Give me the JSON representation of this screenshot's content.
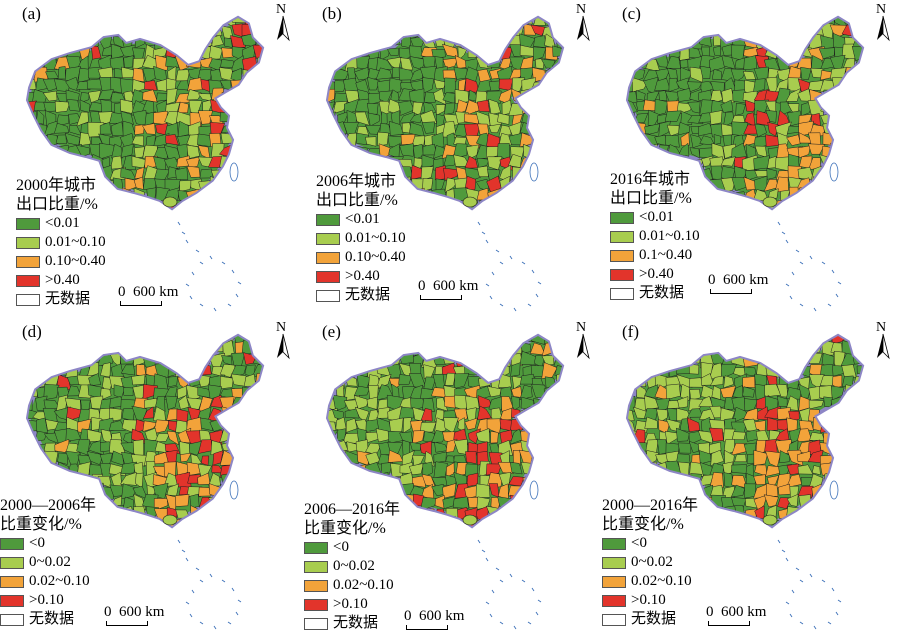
{
  "colors": {
    "dark_green": "#4f9a3c",
    "light_green": "#a8cd4f",
    "orange": "#f2a33a",
    "red": "#e2342b",
    "nodata": "#ffffff",
    "border": "#1e1e1e",
    "outline": "#8d86c6"
  },
  "panels": [
    {
      "label": "(a)",
      "legend_title_line1": "2000年城市",
      "legend_title_line2": "出口比重/%",
      "items": [
        "<0.01",
        "0.01~0.10",
        "0.10~0.40",
        ">0.40",
        "无数据"
      ],
      "scale": "0  600 km",
      "north": "N"
    },
    {
      "label": "(b)",
      "legend_title_line1": "2006年城市",
      "legend_title_line2": "出口比重/%",
      "items": [
        "<0.01",
        "0.01~0.10",
        "0.10~0.40",
        ">0.40",
        "无数据"
      ],
      "scale": "0  600 km",
      "north": "N"
    },
    {
      "label": "(c)",
      "legend_title_line1": "2016年城市",
      "legend_title_line2": "出口比重/%",
      "items": [
        "<0.01",
        "0.01~0.10",
        "0.1~0.40",
        ">0.40",
        "无数据"
      ],
      "scale": "0  600 km",
      "north": "N"
    },
    {
      "label": "(d)",
      "legend_title_line1": "2000—2006年",
      "legend_title_line2": "比重变化/%",
      "items": [
        "<0",
        "0~0.02",
        "0.02~0.10",
        ">0.10",
        "无数据"
      ],
      "scale": "0  600 km",
      "north": "N"
    },
    {
      "label": "(e)",
      "legend_title_line1": "2006—2016年",
      "legend_title_line2": "比重变化/%",
      "items": [
        "<0",
        "0~0.02",
        "0.02~0.10",
        ">0.10",
        "无数据"
      ],
      "scale": "0  600 km",
      "north": "N"
    },
    {
      "label": "(f)",
      "legend_title_line1": "2000—2016年",
      "legend_title_line2": "比重变化/%",
      "items": [
        "<0",
        "0~0.02",
        "0.02~0.10",
        ">0.10",
        "无数据"
      ],
      "scale": "0  600 km",
      "north": "N"
    }
  ]
}
